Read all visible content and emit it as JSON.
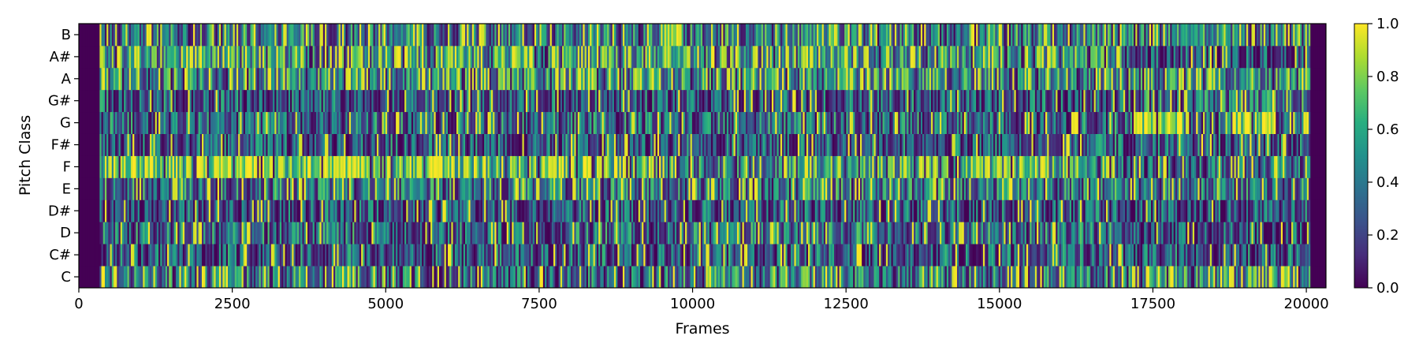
{
  "chart_data": {
    "type": "heatmap",
    "title": "",
    "xlabel": "Frames",
    "ylabel": "Pitch Class",
    "y_categories": [
      "C",
      "C#",
      "D",
      "D#",
      "E",
      "F",
      "F#",
      "G",
      "G#",
      "A",
      "A#",
      "B"
    ],
    "x_ticks": [
      0,
      2500,
      5000,
      7500,
      10000,
      12500,
      15000,
      17500,
      20000
    ],
    "xlim": [
      0,
      20320
    ],
    "frames": 20320,
    "colormap": "viridis",
    "colorbar": {
      "ticks": [
        0.0,
        0.2,
        0.4,
        0.6,
        0.8,
        1.0
      ],
      "tick_labels": [
        "0.0",
        "0.2",
        "0.4",
        "0.6",
        "0.8",
        "1.0"
      ],
      "range": [
        0.0,
        1.0
      ]
    },
    "zero_regions": [
      [
        0,
        350
      ],
      [
        20080,
        20320
      ]
    ],
    "pitch_profiles": [
      {
        "pitch": "C",
        "segments": [
          {
            "x": [
              350,
              5000
            ],
            "mean": 0.45
          },
          {
            "x": [
              5000,
              9700
            ],
            "mean": 0.35
          },
          {
            "x": [
              9700,
              13000
            ],
            "mean": 0.5
          },
          {
            "x": [
              13000,
              17000
            ],
            "mean": 0.4
          },
          {
            "x": [
              17000,
              20080
            ],
            "mean": 0.5
          }
        ]
      },
      {
        "pitch": "C#",
        "segments": [
          {
            "x": [
              350,
              20080
            ],
            "mean": 0.3
          }
        ]
      },
      {
        "pitch": "D",
        "segments": [
          {
            "x": [
              350,
              9700
            ],
            "mean": 0.35
          },
          {
            "x": [
              9700,
              17000
            ],
            "mean": 0.4
          },
          {
            "x": [
              17000,
              20080
            ],
            "mean": 0.25
          }
        ]
      },
      {
        "pitch": "D#",
        "segments": [
          {
            "x": [
              350,
              20080
            ],
            "mean": 0.28
          }
        ]
      },
      {
        "pitch": "E",
        "segments": [
          {
            "x": [
              350,
              20080
            ],
            "mean": 0.42
          }
        ]
      },
      {
        "pitch": "F",
        "segments": [
          {
            "x": [
              350,
              9500
            ],
            "mean": 0.7
          },
          {
            "x": [
              9500,
              11500
            ],
            "mean": 0.45
          },
          {
            "x": [
              11500,
              17000
            ],
            "mean": 0.6
          },
          {
            "x": [
              17000,
              20080
            ],
            "mean": 0.3
          }
        ]
      },
      {
        "pitch": "F#",
        "segments": [
          {
            "x": [
              350,
              20080
            ],
            "mean": 0.3
          }
        ]
      },
      {
        "pitch": "G",
        "segments": [
          {
            "x": [
              350,
              17200
            ],
            "mean": 0.35
          },
          {
            "x": [
              17200,
              18000
            ],
            "mean": 0.85
          },
          {
            "x": [
              18000,
              18800
            ],
            "mean": 0.3
          },
          {
            "x": [
              18800,
              19500
            ],
            "mean": 0.85
          },
          {
            "x": [
              19500,
              20080
            ],
            "mean": 0.4
          }
        ]
      },
      {
        "pitch": "G#",
        "segments": [
          {
            "x": [
              350,
              17200
            ],
            "mean": 0.3
          },
          {
            "x": [
              17200,
              20080
            ],
            "mean": 0.45
          }
        ]
      },
      {
        "pitch": "A",
        "segments": [
          {
            "x": [
              350,
              20080
            ],
            "mean": 0.5
          }
        ]
      },
      {
        "pitch": "A#",
        "segments": [
          {
            "x": [
              350,
              17000
            ],
            "mean": 0.55
          },
          {
            "x": [
              17000,
              20080
            ],
            "mean": 0.25
          }
        ]
      },
      {
        "pitch": "B",
        "segments": [
          {
            "x": [
              350,
              20080
            ],
            "mean": 0.45
          }
        ]
      }
    ]
  }
}
